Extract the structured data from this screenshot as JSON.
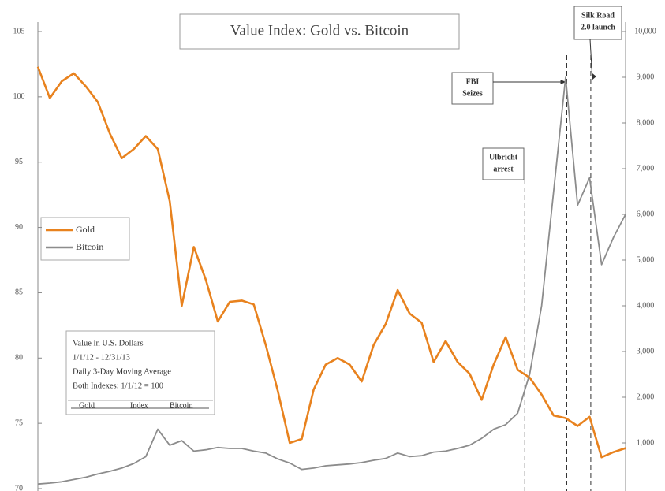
{
  "chart_data": {
    "type": "line",
    "title": "Value Index: Gold vs. Bitcoin",
    "ylim": [
      70,
      105
    ],
    "yticks": [
      70,
      75,
      80,
      85,
      90,
      95,
      100,
      105
    ],
    "y2lim": [
      0,
      10000
    ],
    "y2ticks": [
      {
        "value": 1000,
        "label": "1,000"
      },
      {
        "value": 2000,
        "label": "2,000"
      },
      {
        "value": 3000,
        "label": "3,000"
      },
      {
        "value": 4000,
        "label": "4,000"
      },
      {
        "value": 5000,
        "label": "5,000"
      },
      {
        "value": 6000,
        "label": "6,000"
      },
      {
        "value": 7000,
        "label": "7,000"
      },
      {
        "value": 8000,
        "label": "8,000"
      },
      {
        "value": 9000,
        "label": "9,000"
      },
      {
        "value": 10000,
        "label": "10,000"
      }
    ],
    "series": [
      {
        "name": "Gold",
        "color": "#e8821e",
        "values": [
          102.3,
          99.9,
          101.2,
          101.8,
          100.8,
          99.6,
          97.2,
          95.3,
          96,
          97,
          96,
          92,
          84,
          88.5,
          86,
          82.8,
          84.3,
          84.4,
          84.1,
          81,
          77.5,
          73.5,
          73.8,
          77.6,
          79.5,
          80,
          79.5,
          78.2,
          81,
          82.6,
          85.2,
          83.4,
          82.7,
          79.7,
          81.3,
          79.7,
          78.8,
          76.8,
          79.5,
          81.6,
          79.1,
          78.5,
          77.2,
          75.6,
          75.4,
          74.8,
          75.5,
          72.4,
          72.8,
          73.1
        ]
      },
      {
        "name": "Bitcoin",
        "color": "#8c8c8c",
        "axis": "y2",
        "values": [
          100,
          120,
          150,
          200,
          250,
          320,
          380,
          450,
          550,
          700,
          1300,
          950,
          1050,
          820,
          850,
          900,
          880,
          880,
          820,
          780,
          650,
          560,
          420,
          450,
          500,
          520,
          540,
          570,
          620,
          660,
          780,
          700,
          720,
          800,
          820,
          880,
          950,
          1100,
          1300,
          1400,
          1650,
          2500,
          4000,
          6500,
          9000,
          6200,
          6800,
          4900,
          5500,
          6000
        ]
      }
    ],
    "annotations": [
      {
        "label": [
          "Ulbricht",
          "arrest"
        ],
        "x": 40.6
      },
      {
        "label": [
          "FBI",
          "Seizes"
        ],
        "x": 44.1
      },
      {
        "label": [
          "Silk Road",
          "2.0 launch"
        ],
        "x": 46.1
      }
    ],
    "info": {
      "lines": [
        "Value in U.S. Dollars",
        "1/1/12 - 12/31/13",
        "Daily 3-Day Moving Average",
        "Both Indexes: 1/1/12 = 100"
      ],
      "footer": [
        "Gold",
        "Index",
        "Bitcoin"
      ]
    }
  }
}
